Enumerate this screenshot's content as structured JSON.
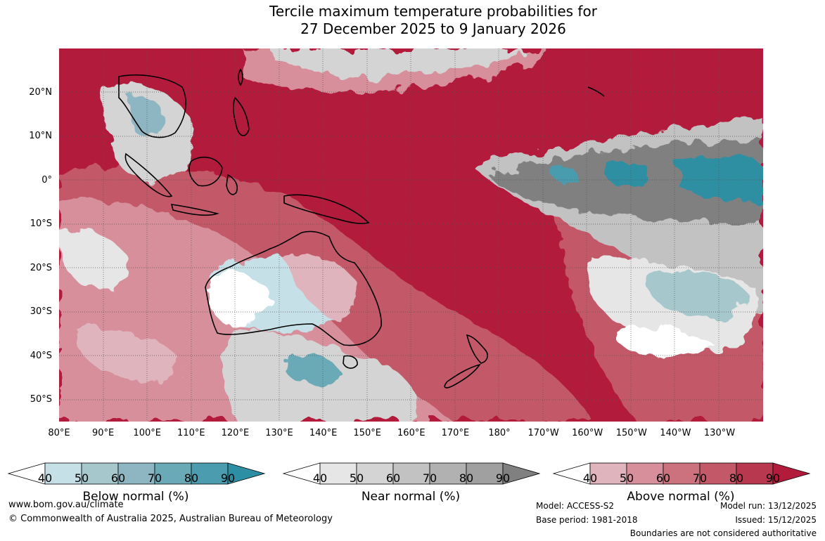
{
  "title": "Tercile maximum temperature probabilities for\n27 December 2025 to 9 January 2026",
  "map": {
    "lon_labels": [
      "80°E",
      "90°E",
      "100°E",
      "110°E",
      "120°E",
      "130°E",
      "140°E",
      "150°E",
      "160°E",
      "170°E",
      "180°",
      "170°W",
      "160°W",
      "150°W",
      "140°W",
      "130°W"
    ],
    "lat_labels": [
      "20°N",
      "10°N",
      "0°",
      "10°S",
      "20°S",
      "30°S",
      "40°S",
      "50°S"
    ],
    "lon_range": [
      80,
      240
    ],
    "lat_range": [
      -55,
      30
    ],
    "dominant_category": "Above normal"
  },
  "legend": {
    "below": {
      "name": "Below normal (%)",
      "ticks": [
        "40",
        "50",
        "60",
        "70",
        "80",
        "90"
      ],
      "colors": [
        "#ffffff",
        "#c6e0e7",
        "#a6c8cd",
        "#8db6c2",
        "#6aa9b6",
        "#4a9cae",
        "#2d8fa3"
      ]
    },
    "near": {
      "name": "Near normal (%)",
      "ticks": [
        "40",
        "50",
        "60",
        "70",
        "80",
        "90"
      ],
      "colors": [
        "#ffffff",
        "#e6e6e6",
        "#d4d4d4",
        "#c2c2c2",
        "#b1b1b1",
        "#a0a0a0",
        "#808080"
      ]
    },
    "above": {
      "name": "Above normal (%)",
      "ticks": [
        "40",
        "50",
        "60",
        "70",
        "80",
        "90"
      ],
      "colors": [
        "#ffffff",
        "#e0b4bd",
        "#d78f9b",
        "#cc727e",
        "#c35868",
        "#b8394f",
        "#b31b3c"
      ]
    }
  },
  "footer": {
    "website": "www.bom.gov.au/climate",
    "copyright": "© Commonwealth of Australia 2025, Australian Bureau of Meteorology",
    "model": "Model: ACCESS-S2",
    "base_period": "Base period: 1981-2018",
    "model_run": "Model run: 13/12/2025",
    "issued": "Issued: 15/12/2025",
    "disclaimer": "Boundaries are not considered authoritative"
  }
}
